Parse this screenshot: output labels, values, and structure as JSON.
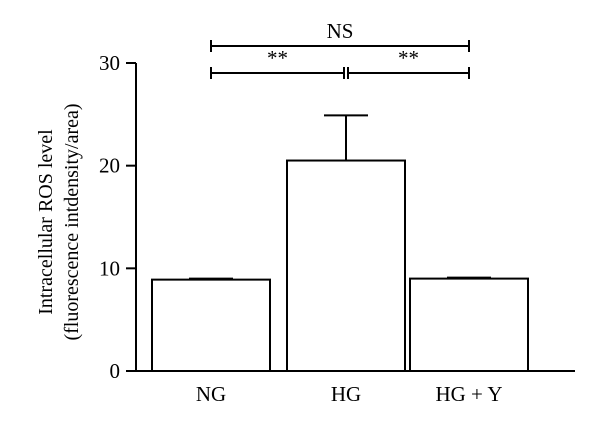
{
  "chart_data": {
    "type": "bar",
    "categories": [
      "NG",
      "HG",
      "HG + Y"
    ],
    "values": [
      8.9,
      20.5,
      9.0
    ],
    "errors": [
      0.1,
      4.4,
      0.1
    ],
    "patterns": [
      "dots",
      "horizontal-lines",
      "diagonal-lines"
    ],
    "title": "",
    "xlabel": "",
    "ylabel_lines": [
      "Intracellular ROS level",
      "(fluorescence intdensity/area)"
    ],
    "ylim": [
      0,
      30
    ],
    "yticks": [
      0,
      10,
      20,
      30
    ],
    "grid": false,
    "significance": [
      {
        "from": 0,
        "to": 1,
        "label": "**",
        "level": 1
      },
      {
        "from": 1,
        "to": 2,
        "label": "**",
        "level": 1
      },
      {
        "from": 0,
        "to": 2,
        "label": "NS",
        "level": 2
      }
    ],
    "colors": {
      "bar_stroke": "#000000",
      "fill": "#ffffff"
    }
  }
}
